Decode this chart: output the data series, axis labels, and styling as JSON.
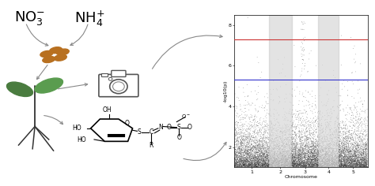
{
  "red_line_y": 7.3,
  "blue_line_y": 5.3,
  "chr_sizes": [
    34,
    22,
    26,
    20,
    28
  ],
  "chr_colors_dark": "#333333",
  "chr_colors_light": "#aaaaaa",
  "n_snps_per_chr": [
    3500,
    2200,
    2800,
    2000,
    2900
  ],
  "background_color": "#ffffff",
  "ylabel": "-log10(p)",
  "xlabel": "Chromosome",
  "seed_color": "#b87020",
  "leaf_color1": "#4a7c3f",
  "leaf_color2": "#5a9c4f",
  "arrow_color": "#888888",
  "line_color": "#333333"
}
